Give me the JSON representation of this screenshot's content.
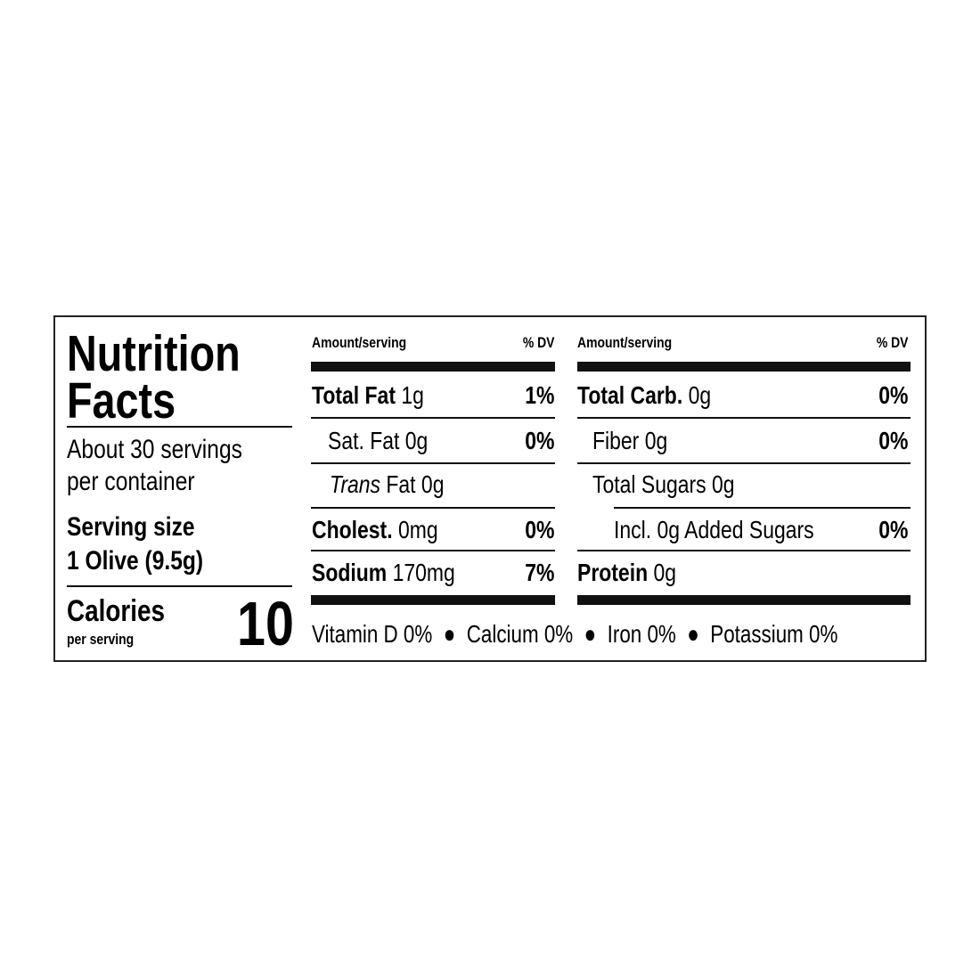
{
  "title_line1": "Nutrition",
  "title_line2": "Facts",
  "servings_line1": "About 30 servings",
  "servings_line2": "per container",
  "serving_size_label": "Serving size",
  "serving_size_value": "1 Olive (9.5g)",
  "calories_label": "Calories",
  "calories_sub": "per serving",
  "calories_value": "10",
  "left_table": {
    "header_amount": "Amount/serving",
    "header_dv": "% DV",
    "rows": [
      {
        "name": "Total Fat",
        "amount": "1g",
        "dv": "1%"
      },
      {
        "name": "Sat. Fat",
        "amount": "0g",
        "dv": "0%"
      },
      {
        "name_italic": "Trans",
        "name": "Fat",
        "amount": "0g",
        "dv": ""
      },
      {
        "name": "Cholest.",
        "amount": "0mg",
        "dv": "0%"
      },
      {
        "name": "Sodium",
        "amount": "170mg",
        "dv": "7%"
      }
    ]
  },
  "right_table": {
    "header_amount": "Amount/serving",
    "header_dv": "% DV",
    "rows": [
      {
        "name": "Total Carb.",
        "amount": "0g",
        "dv": "0%"
      },
      {
        "name": "Fiber",
        "amount": "0g",
        "dv": "0%"
      },
      {
        "name": "Total Sugars",
        "amount": "0g",
        "dv": ""
      },
      {
        "name": "Incl. 0g Added Sugars",
        "amount": "",
        "dv": "0%"
      },
      {
        "name": "Protein",
        "amount": "0g",
        "dv": ""
      }
    ]
  },
  "micronutrients": "Vitamin D 0%  ●  Calcium 0%  ●  Iron 0%  ●  Potassium 0%"
}
